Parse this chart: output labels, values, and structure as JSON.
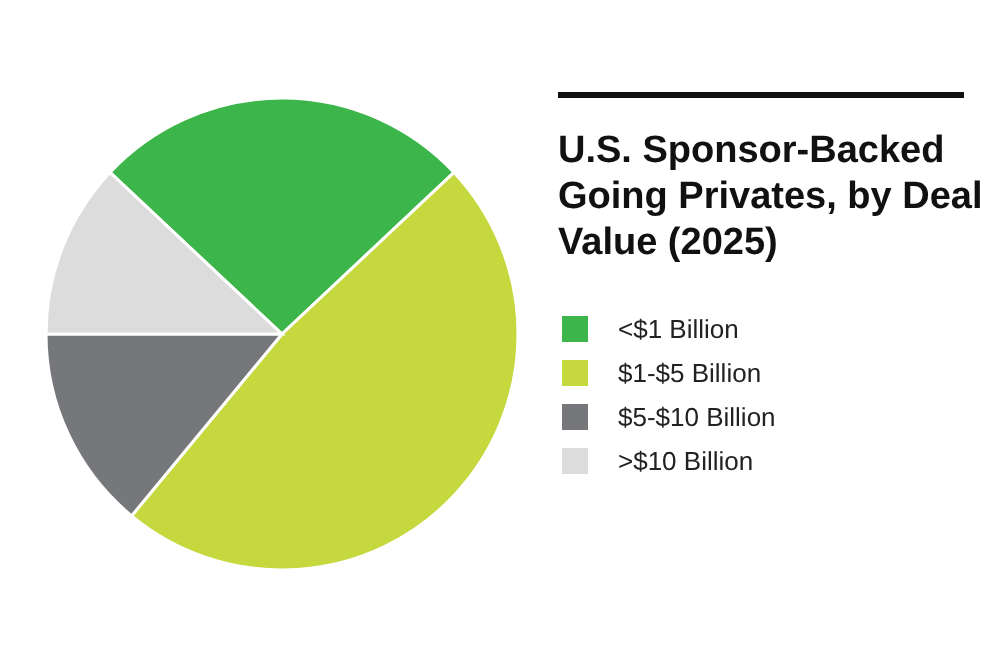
{
  "chart_data": {
    "type": "pie",
    "title": "U.S. Sponsor-Backed Going Privates, by Deal Value (2025)",
    "categories": [
      "<$1 Billion",
      "$1-$5 Billion",
      "$5-$10 Billion",
      ">$10 Billion"
    ],
    "values": [
      26,
      48,
      14,
      12
    ],
    "colors": [
      "#3cb54a",
      "#c5d83e",
      "#76777b",
      "#dcdcdc"
    ],
    "legend": "right"
  }
}
